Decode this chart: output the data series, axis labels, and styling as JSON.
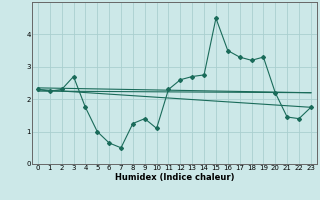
{
  "xlabel": "Humidex (Indice chaleur)",
  "bg_color": "#cce8e8",
  "line_color": "#1a6b5a",
  "grid_color": "#aacfcf",
  "xlim": [
    -0.5,
    23.5
  ],
  "ylim": [
    0,
    5
  ],
  "yticks": [
    0,
    1,
    2,
    3,
    4
  ],
  "xticks": [
    0,
    1,
    2,
    3,
    4,
    5,
    6,
    7,
    8,
    9,
    10,
    11,
    12,
    13,
    14,
    15,
    16,
    17,
    18,
    19,
    20,
    21,
    22,
    23
  ],
  "series1_x": [
    0,
    1,
    2,
    3,
    4,
    5,
    6,
    7,
    8,
    9,
    10,
    11,
    12,
    13,
    14,
    15,
    16,
    17,
    18,
    19,
    20,
    21,
    22,
    23
  ],
  "series1_y": [
    2.3,
    2.25,
    2.3,
    2.7,
    1.75,
    1.0,
    0.65,
    0.5,
    1.25,
    1.4,
    1.1,
    2.3,
    2.6,
    2.7,
    2.75,
    4.5,
    3.5,
    3.3,
    3.2,
    3.3,
    2.2,
    1.45,
    1.4,
    1.75
  ],
  "series2_x": [
    0,
    23
  ],
  "series2_y": [
    2.35,
    2.2
  ],
  "series3_x": [
    0,
    23
  ],
  "series3_y": [
    2.3,
    1.75
  ],
  "series4_x": [
    0,
    23
  ],
  "series4_y": [
    2.25,
    2.2
  ]
}
